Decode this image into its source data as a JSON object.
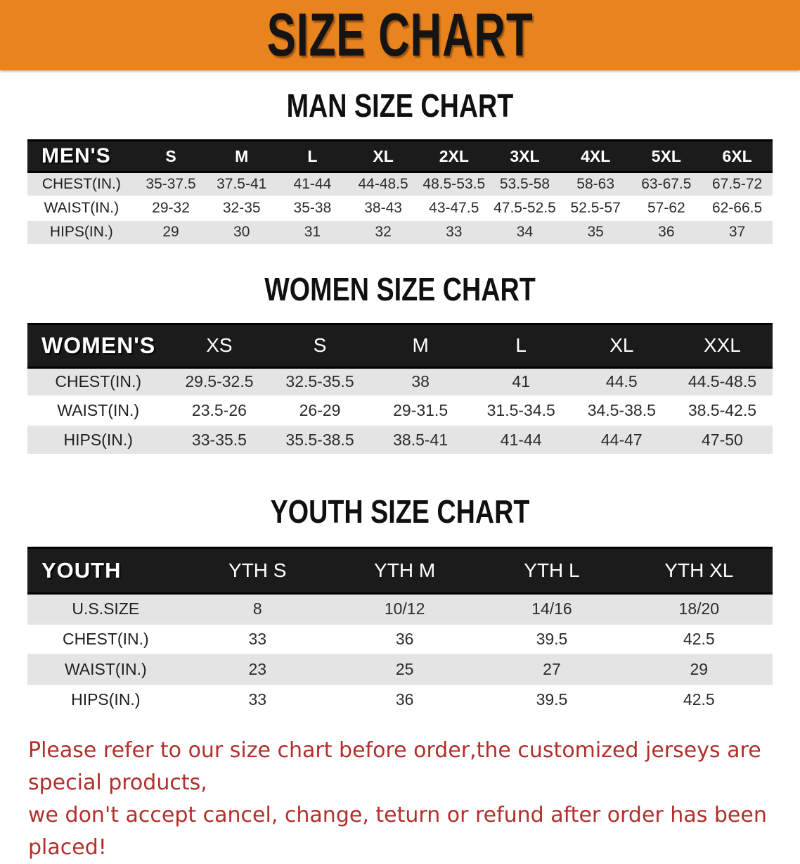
{
  "banner": {
    "title": "SIZE CHART"
  },
  "sections": [
    {
      "title": "MAN SIZE CHART",
      "table": {
        "name": "MEN'S",
        "sizes": [
          "S",
          "M",
          "L",
          "XL",
          "2XL",
          "3XL",
          "4XL",
          "5XL",
          "6XL"
        ],
        "rows": [
          {
            "label": "CHEST(IN.)",
            "values": [
              "35-37.5",
              "37.5-41",
              "41-44",
              "44-48.5",
              "48.5-53.5",
              "53.5-58",
              "58-63",
              "63-67.5",
              "67.5-72"
            ]
          },
          {
            "label": "WAIST(IN.)",
            "values": [
              "29-32",
              "32-35",
              "35-38",
              "38-43",
              "43-47.5",
              "47.5-52.5",
              "52.5-57",
              "57-62",
              "62-66.5"
            ]
          },
          {
            "label": "HIPS(IN.)",
            "values": [
              "29",
              "30",
              "31",
              "32",
              "33",
              "34",
              "35",
              "36",
              "37"
            ]
          }
        ]
      }
    },
    {
      "title": "WOMEN SIZE CHART",
      "table": {
        "name": "WOMEN'S",
        "sizes": [
          "XS",
          "S",
          "M",
          "L",
          "XL",
          "XXL"
        ],
        "rows": [
          {
            "label": "CHEST(IN.)",
            "values": [
              "29.5-32.5",
              "32.5-35.5",
              "38",
              "41",
              "44.5",
              "44.5-48.5"
            ]
          },
          {
            "label": "WAIST(IN.)",
            "values": [
              "23.5-26",
              "26-29",
              "29-31.5",
              "31.5-34.5",
              "34.5-38.5",
              "38.5-42.5"
            ]
          },
          {
            "label": "HIPS(IN.)",
            "values": [
              "33-35.5",
              "35.5-38.5",
              "38.5-41",
              "41-44",
              "44-47",
              "47-50"
            ]
          }
        ]
      }
    },
    {
      "title": "YOUTH SIZE CHART",
      "table": {
        "name": "YOUTH",
        "sizes": [
          "YTH S",
          "YTH M",
          "YTH L",
          "YTH XL"
        ],
        "rows": [
          {
            "label": "U.S.SIZE",
            "values": [
              "8",
              "10/12",
              "14/16",
              "18/20"
            ]
          },
          {
            "label": "CHEST(IN.)",
            "values": [
              "33",
              "36",
              "39.5",
              "42.5"
            ]
          },
          {
            "label": "WAIST(IN.)",
            "values": [
              "23",
              "25",
              "27",
              "29"
            ]
          },
          {
            "label": "HIPS(IN.)",
            "values": [
              "33",
              "36",
              "39.5",
              "42.5"
            ]
          }
        ]
      }
    }
  ],
  "note": {
    "line1": "Please refer to our size chart before order,the customized jerseys are special products,",
    "line2": "we don't accept cancel, change, teturn or refund after order has been placed!"
  },
  "colors": {
    "banner_bg": "#e8831e",
    "header_bar_bg": "#1b1b1b",
    "row_alt_bg": "#e4e4e4",
    "note_text": "#b22f2a"
  }
}
